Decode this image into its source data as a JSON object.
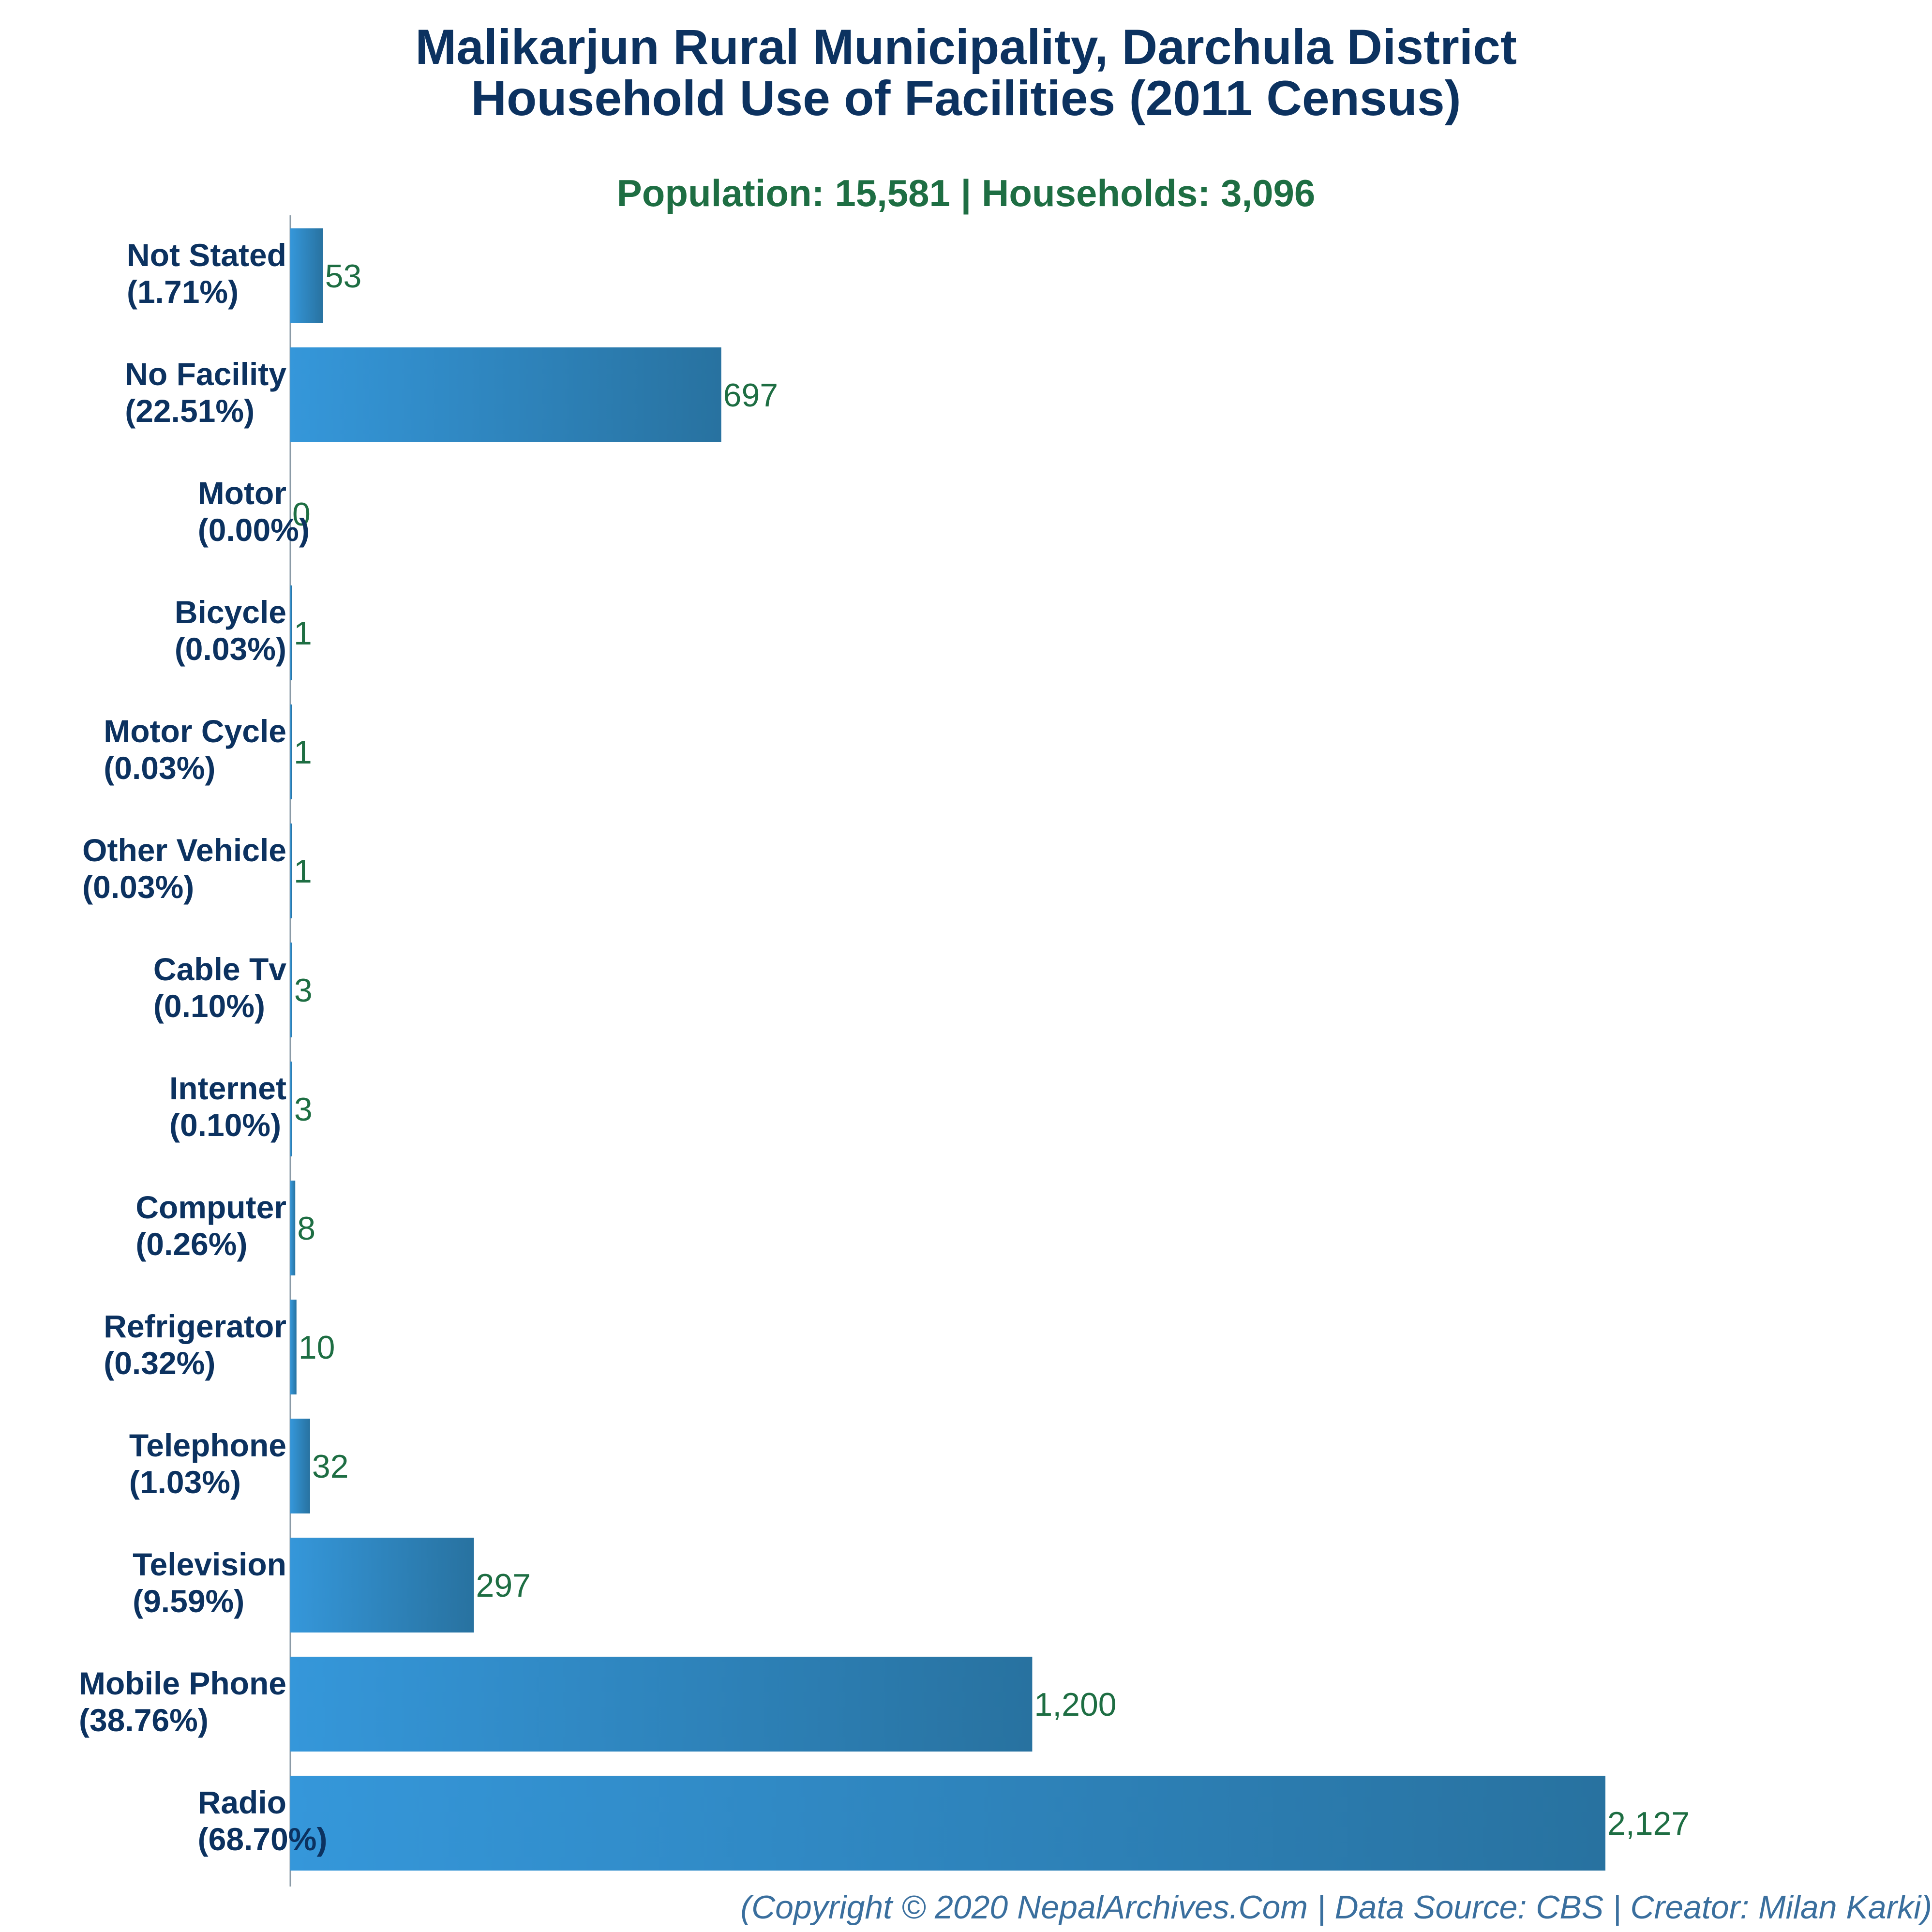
{
  "chart_data": {
    "type": "bar",
    "orientation": "horizontal",
    "title_line1": "Malikarjun Rural Municipality, Darchula District",
    "title_line2": "Household Use of Facilities (2011 Census)",
    "subtitle": "Population: 15,581 | Households: 3,096",
    "footer": "(Copyright © 2020 NepalArchives.Com | Data Source: CBS | Creator: Milan Karki)",
    "xlim": [
      0,
      2127
    ],
    "grid": false,
    "categories": [
      {
        "name": "Not Stated",
        "pct": "(1.71%)",
        "value": 53,
        "label": "53"
      },
      {
        "name": "No Facility",
        "pct": "(22.51%)",
        "value": 697,
        "label": "697"
      },
      {
        "name": "Motor",
        "pct": "(0.00%)",
        "value": 0,
        "label": "0"
      },
      {
        "name": "Bicycle",
        "pct": "(0.03%)",
        "value": 1,
        "label": "1"
      },
      {
        "name": "Motor Cycle",
        "pct": "(0.03%)",
        "value": 1,
        "label": "1"
      },
      {
        "name": "Other Vehicle",
        "pct": "(0.03%)",
        "value": 1,
        "label": "1"
      },
      {
        "name": "Cable Tv",
        "pct": "(0.10%)",
        "value": 3,
        "label": "3"
      },
      {
        "name": "Internet",
        "pct": "(0.10%)",
        "value": 3,
        "label": "3"
      },
      {
        "name": "Computer",
        "pct": "(0.26%)",
        "value": 8,
        "label": "8"
      },
      {
        "name": "Refrigerator",
        "pct": "(0.32%)",
        "value": 10,
        "label": "10"
      },
      {
        "name": "Telephone",
        "pct": "(1.03%)",
        "value": 32,
        "label": "32"
      },
      {
        "name": "Television",
        "pct": "(9.59%)",
        "value": 297,
        "label": "297"
      },
      {
        "name": "Mobile Phone",
        "pct": "(38.76%)",
        "value": 1200,
        "label": "1,200"
      },
      {
        "name": "Radio",
        "pct": "(68.70%)",
        "value": 2127,
        "label": "2,127"
      }
    ],
    "colors": {
      "bar_light": "#3597da",
      "bar_dark": "#2872a0",
      "category_label": "#0c3260",
      "value_label": "#1e6e43",
      "axis": "#8a9aa6"
    }
  }
}
